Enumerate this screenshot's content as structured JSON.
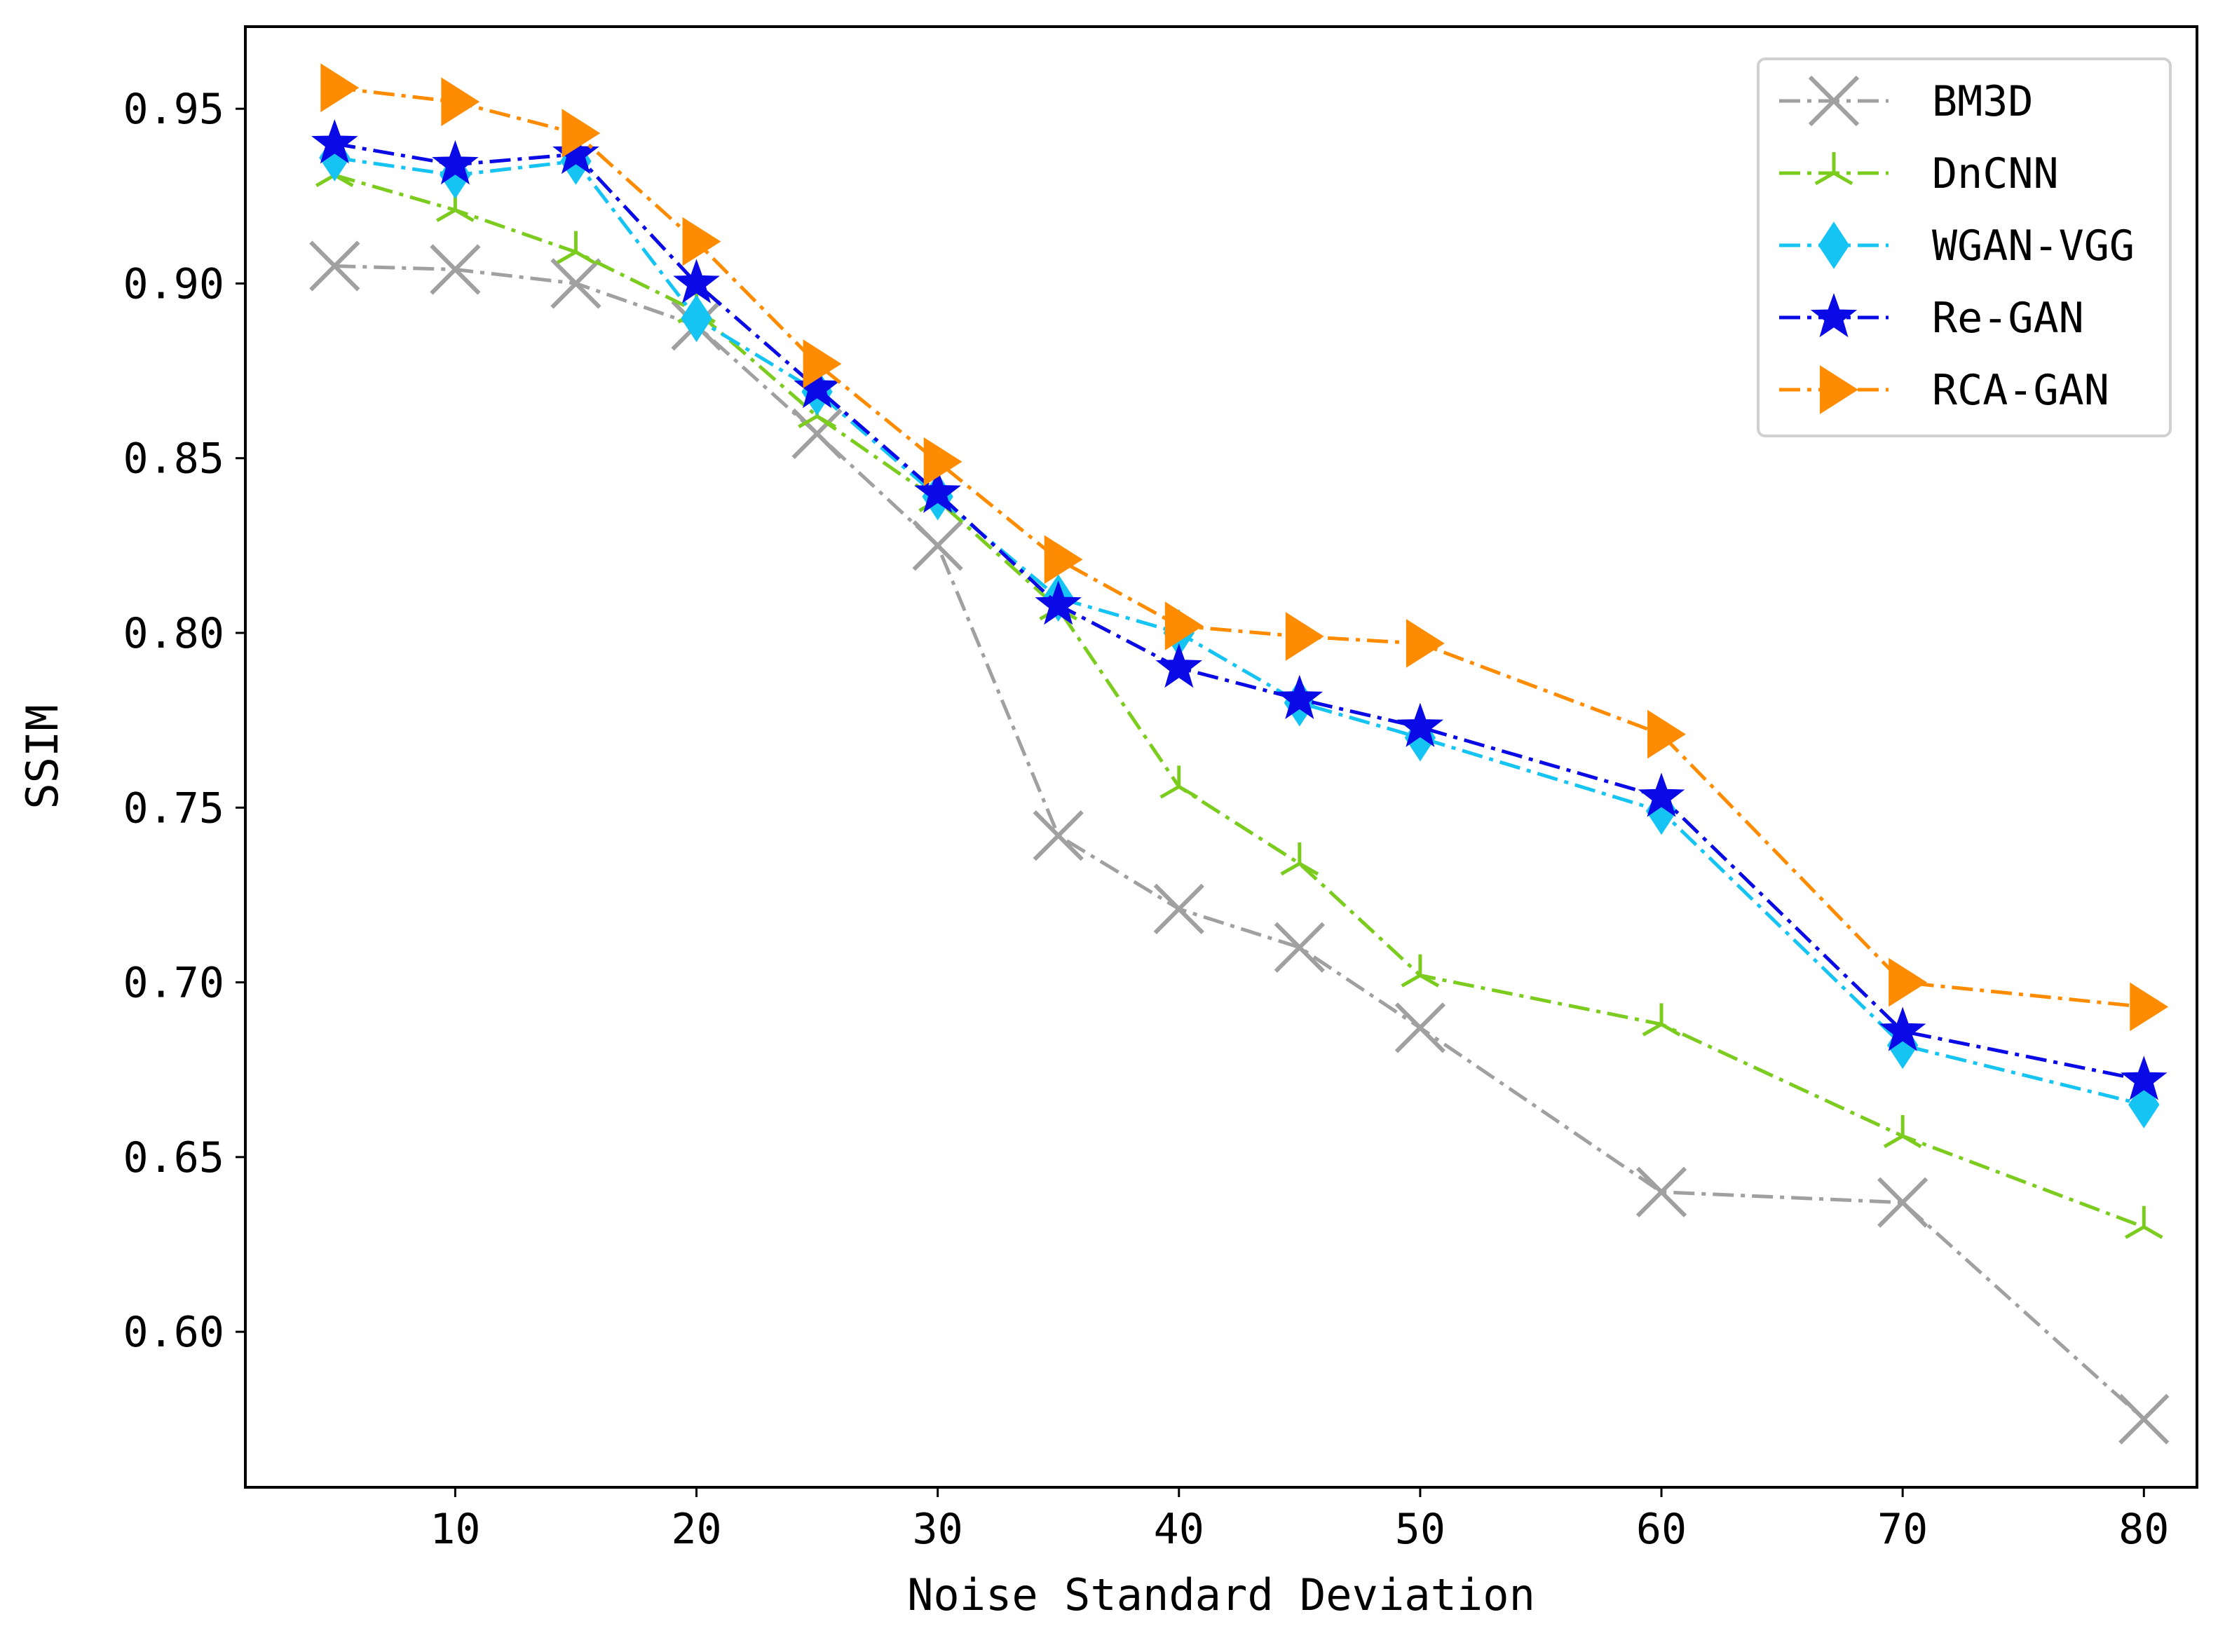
{
  "chart_data": {
    "type": "line",
    "title": "",
    "xlabel": "Noise Standard Deviation",
    "ylabel": "SSIM",
    "xlim": [
      1.3,
      82.2
    ],
    "ylim": [
      0.5555,
      0.9735
    ],
    "x_ticks": [
      10,
      20,
      30,
      40,
      50,
      60,
      70,
      80
    ],
    "x_tick_labels": [
      "10",
      "20",
      "30",
      "40",
      "50",
      "60",
      "70",
      "80"
    ],
    "y_ticks": [
      0.6,
      0.65,
      0.7,
      0.75,
      0.8,
      0.85,
      0.9,
      0.95
    ],
    "y_tick_labels": [
      "0.60",
      "0.65",
      "0.70",
      "0.75",
      "0.80",
      "0.85",
      "0.90",
      "0.95"
    ],
    "grid": false,
    "legend_position": "top-right",
    "x": [
      5,
      10,
      15,
      20,
      25,
      30,
      35,
      40,
      45,
      50,
      60,
      70,
      80
    ],
    "series": [
      {
        "name": "BM3D",
        "color": "#a0a0a0",
        "marker": "x",
        "linestyle": "dashdot",
        "values": [
          0.905,
          0.904,
          0.9,
          0.888,
          0.857,
          0.825,
          0.742,
          0.721,
          0.71,
          0.687,
          0.64,
          0.637,
          0.575
        ]
      },
      {
        "name": "DnCNN",
        "color": "#7ccc1f",
        "marker": "tri_up",
        "linestyle": "dashdot",
        "values": [
          0.931,
          0.921,
          0.909,
          0.892,
          0.862,
          0.838,
          0.807,
          0.756,
          0.734,
          0.702,
          0.688,
          0.656,
          0.63
        ]
      },
      {
        "name": "WGAN-VGG",
        "color": "#16c4f4",
        "marker": "thin_diamond",
        "linestyle": "dashdot",
        "values": [
          0.936,
          0.931,
          0.935,
          0.89,
          0.869,
          0.839,
          0.81,
          0.8,
          0.78,
          0.77,
          0.749,
          0.682,
          0.665
        ]
      },
      {
        "name": "Re-GAN",
        "color": "#0a0ae6",
        "marker": "star",
        "linestyle": "dashdot",
        "values": [
          0.94,
          0.934,
          0.937,
          0.9,
          0.87,
          0.84,
          0.808,
          0.79,
          0.781,
          0.773,
          0.753,
          0.686,
          0.672
        ]
      },
      {
        "name": "RCA-GAN",
        "color": "#ff8c00",
        "marker": "triangle_right",
        "linestyle": "dashdot",
        "values": [
          0.956,
          0.952,
          0.943,
          0.912,
          0.877,
          0.849,
          0.821,
          0.802,
          0.799,
          0.797,
          0.771,
          0.7,
          0.693
        ]
      }
    ]
  }
}
